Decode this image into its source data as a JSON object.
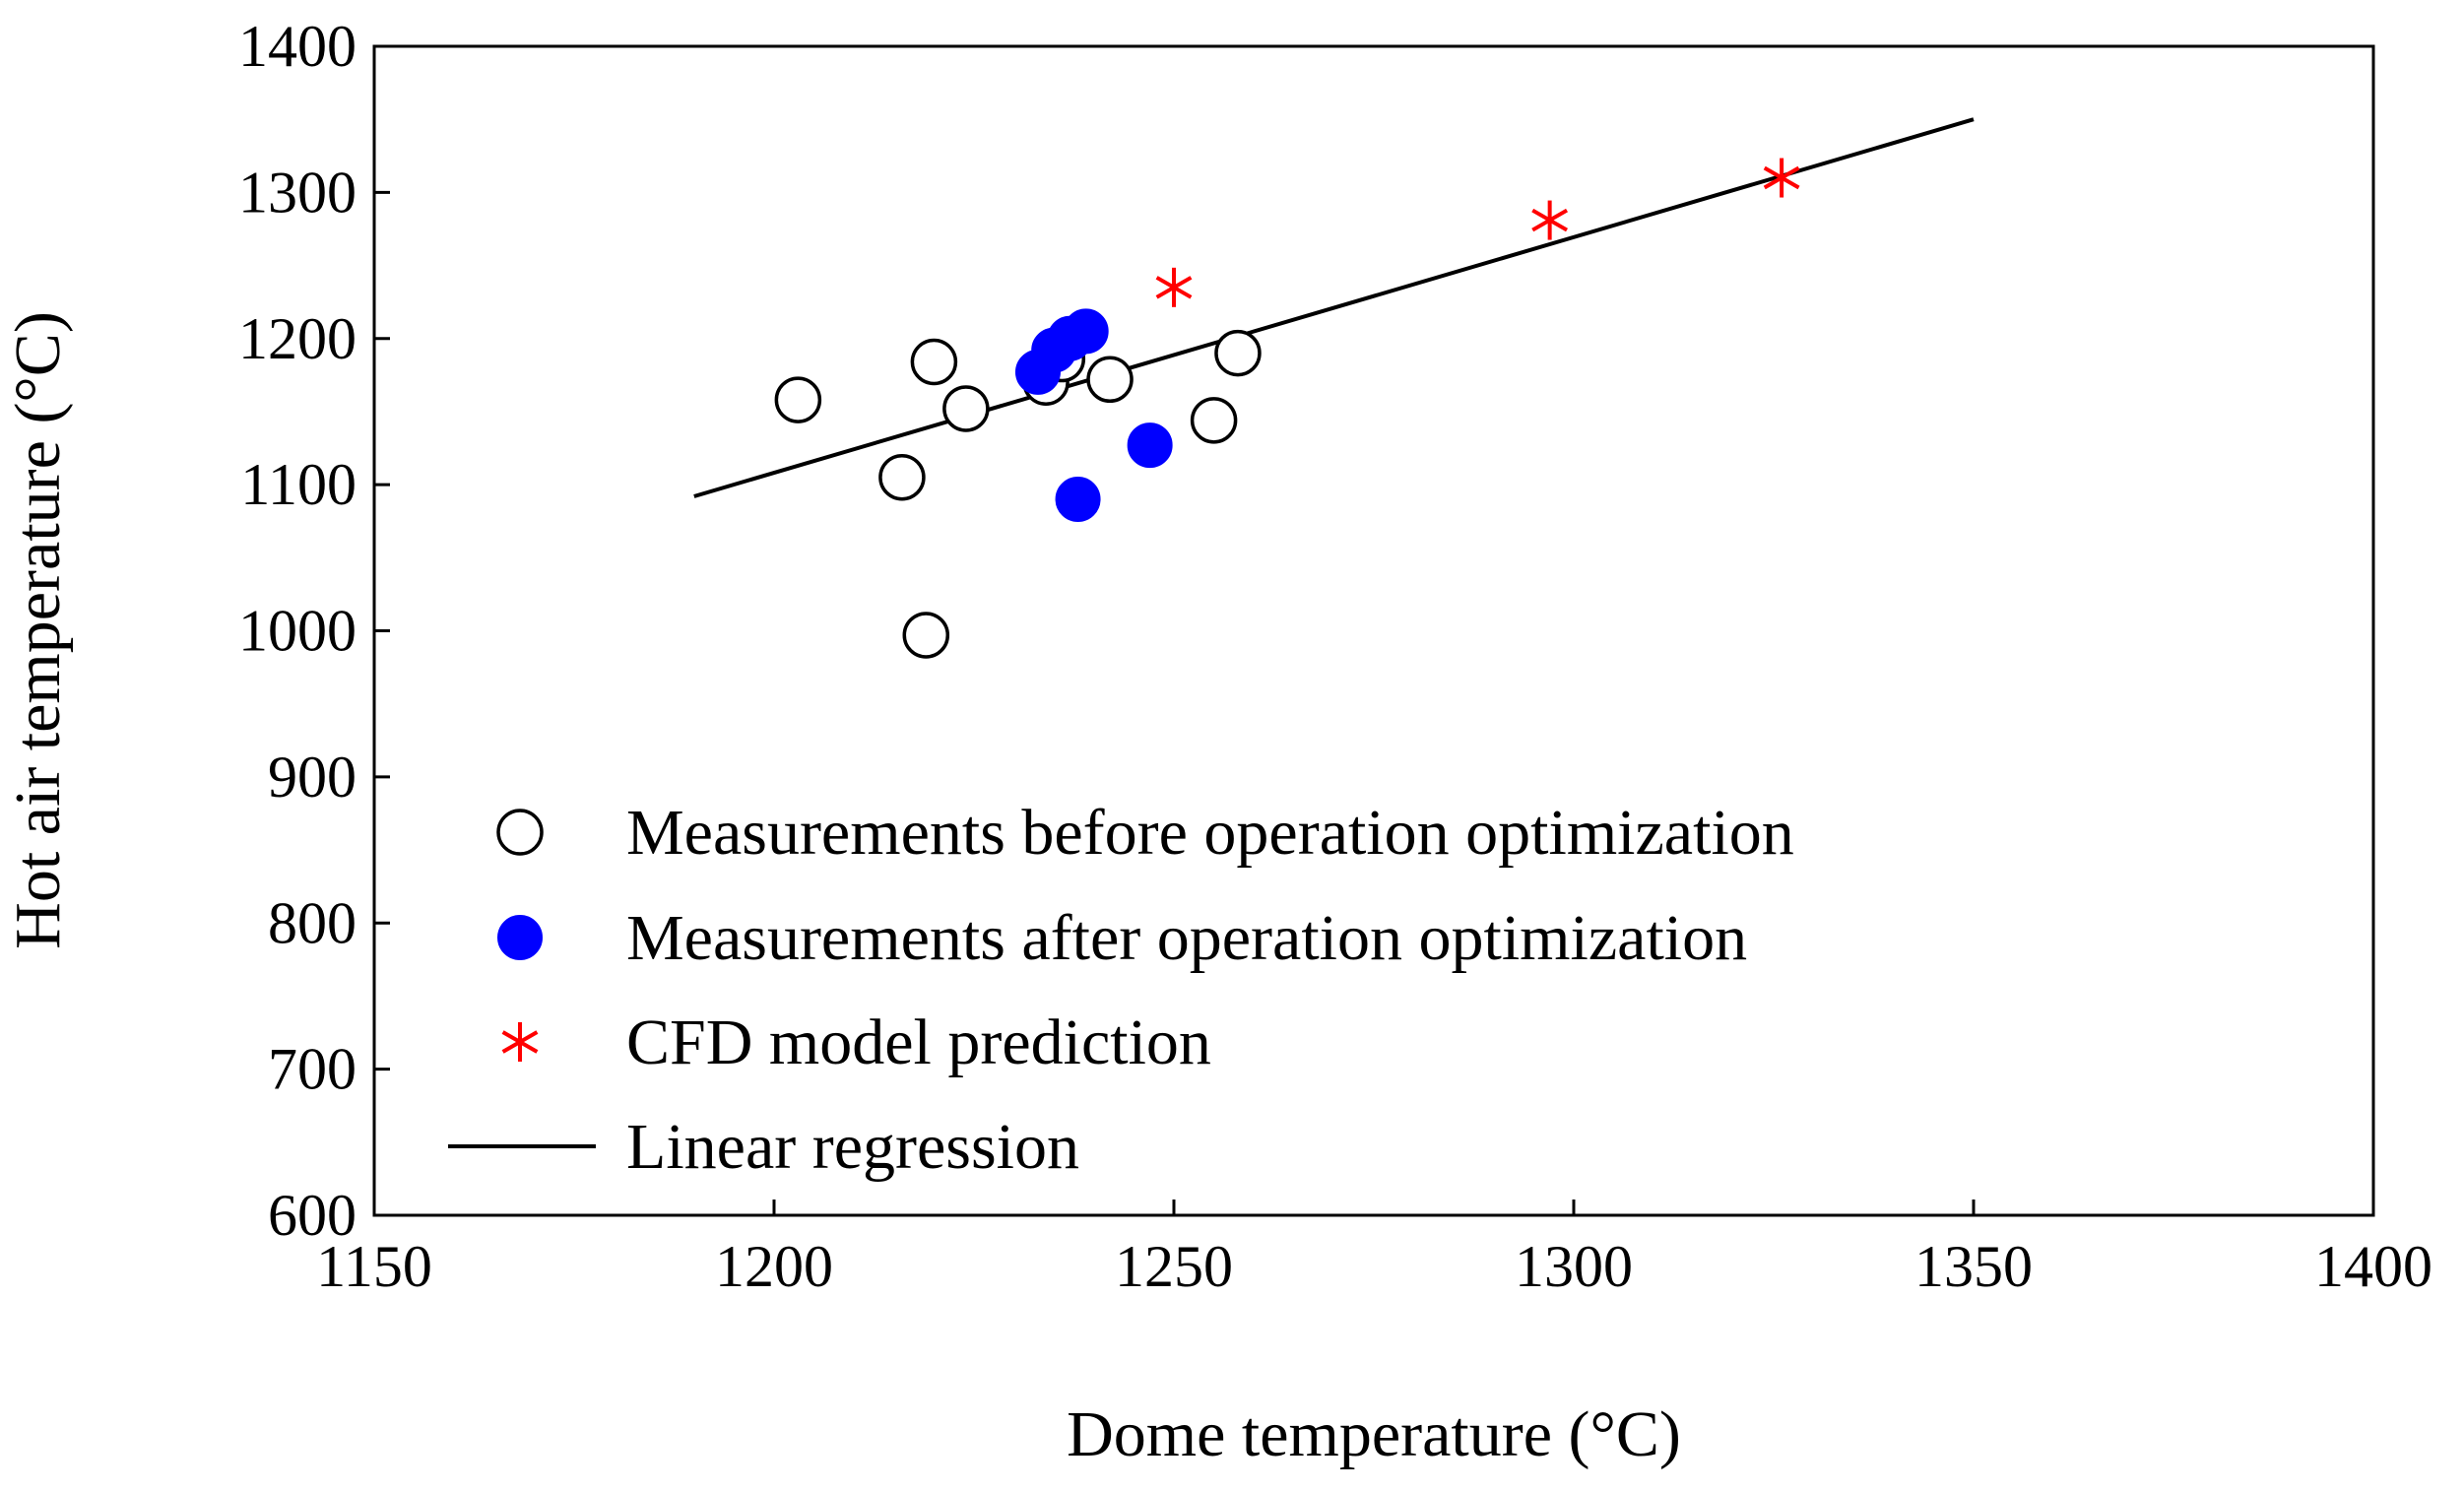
{
  "chart_data": {
    "type": "scatter",
    "xlabel": "Dome temperature (°C)",
    "ylabel": "Hot air temperature (°C)",
    "xlim": [
      1150,
      1400
    ],
    "ylim": [
      600,
      1400
    ],
    "xticks": [
      "1150",
      "1200",
      "1250",
      "1300",
      "1350",
      "1400"
    ],
    "yticks": [
      "600",
      "700",
      "800",
      "900",
      "1000",
      "1100",
      "1200",
      "1300",
      "1400"
    ],
    "grid": false,
    "legend_position": "lower-left",
    "series": [
      {
        "name": "Measurements before operation optimization",
        "marker": "open-circle",
        "color": "#000000",
        "points": [
          [
            1203,
            1158
          ],
          [
            1216,
            1105
          ],
          [
            1219,
            997
          ],
          [
            1220,
            1184
          ],
          [
            1224,
            1152
          ],
          [
            1234,
            1170
          ],
          [
            1236,
            1186
          ],
          [
            1242,
            1172
          ],
          [
            1255,
            1144
          ],
          [
            1258,
            1190
          ]
        ]
      },
      {
        "name": "Measurements after operation optimization",
        "marker": "filled-circle",
        "color": "#0000ff",
        "points": [
          [
            1233,
            1177
          ],
          [
            1235,
            1192
          ],
          [
            1237,
            1200
          ],
          [
            1239,
            1205
          ],
          [
            1247,
            1127
          ],
          [
            1238,
            1090
          ]
        ]
      },
      {
        "name": "CFD model prediction",
        "marker": "asterisk",
        "color": "#ff0000",
        "points": [
          [
            1250,
            1235
          ],
          [
            1297,
            1281
          ],
          [
            1326,
            1310
          ]
        ]
      },
      {
        "name": "Linear regression",
        "marker": "line",
        "color": "#000000",
        "points": [
          [
            1190,
            1092
          ],
          [
            1350,
            1350
          ]
        ]
      }
    ]
  }
}
